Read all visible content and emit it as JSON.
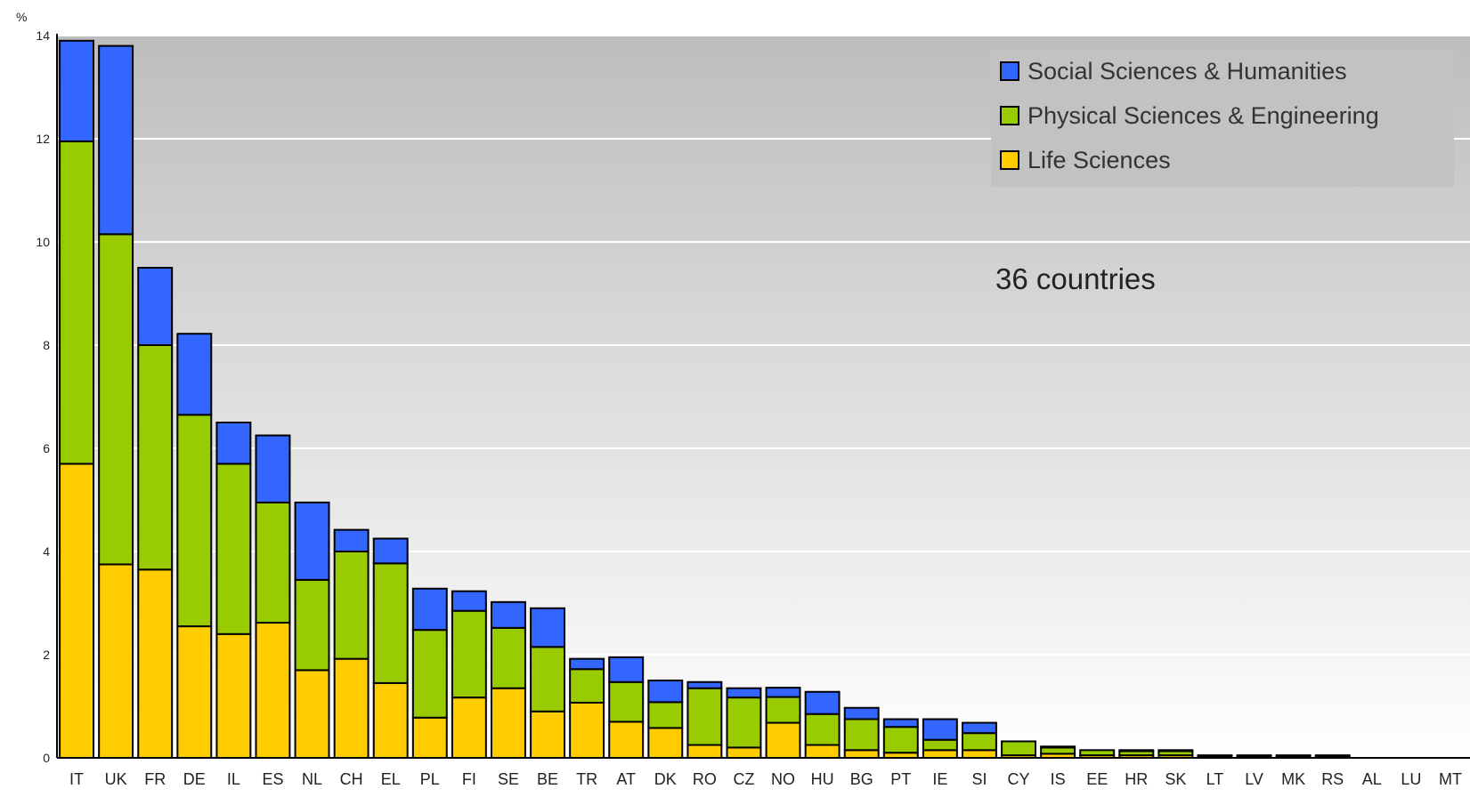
{
  "chart_data": {
    "type": "bar",
    "stacked": true,
    "ylabel": "%",
    "ylim": [
      0,
      14
    ],
    "yticks": [
      "0",
      "2",
      "4",
      "6",
      "8",
      "10",
      "12",
      "14"
    ],
    "annotation": "36 countries",
    "legend_position": "top-right",
    "categories": [
      "IT",
      "UK",
      "FR",
      "DE",
      "IL",
      "ES",
      "NL",
      "CH",
      "EL",
      "PL",
      "FI",
      "SE",
      "BE",
      "TR",
      "AT",
      "DK",
      "RO",
      "CZ",
      "NO",
      "HU",
      "BG",
      "PT",
      "IE",
      "SI",
      "CY",
      "IS",
      "EE",
      "HR",
      "SK",
      "LT",
      "LV",
      "MK",
      "RS",
      "AL",
      "LU",
      "MT"
    ],
    "series": [
      {
        "name": "Life Sciences",
        "color": "#ffcc00",
        "values": [
          5.7,
          3.75,
          3.65,
          2.55,
          2.4,
          2.62,
          1.7,
          1.92,
          1.45,
          0.78,
          1.17,
          1.35,
          0.9,
          1.07,
          0.7,
          0.58,
          0.25,
          0.2,
          0.68,
          0.25,
          0.15,
          0.1,
          0.15,
          0.15,
          0.05,
          0.08,
          0.05,
          0.05,
          0.05,
          0.02,
          0.02,
          0.02,
          0.02,
          0.0,
          0.0,
          0.0
        ]
      },
      {
        "name": "Physical Sciences & Engineering",
        "color": "#99cc00",
        "values": [
          6.25,
          6.4,
          4.35,
          4.1,
          3.3,
          2.33,
          1.75,
          2.08,
          2.32,
          1.7,
          1.68,
          1.17,
          1.25,
          0.65,
          0.77,
          0.5,
          1.1,
          0.97,
          0.5,
          0.6,
          0.6,
          0.5,
          0.2,
          0.33,
          0.27,
          0.12,
          0.1,
          0.08,
          0.08,
          0.03,
          0.03,
          0.03,
          0.03,
          0.0,
          0.0,
          0.0
        ]
      },
      {
        "name": "Social Sciences & Humanities",
        "color": "#3366ff",
        "values": [
          1.95,
          3.65,
          1.5,
          1.57,
          0.8,
          1.3,
          1.5,
          0.42,
          0.48,
          0.8,
          0.38,
          0.5,
          0.75,
          0.2,
          0.48,
          0.42,
          0.12,
          0.18,
          0.18,
          0.43,
          0.22,
          0.15,
          0.4,
          0.2,
          0.0,
          0.02,
          0.0,
          0.02,
          0.02,
          0.0,
          0.0,
          0.0,
          0.0,
          0.0,
          0.0,
          0.0
        ]
      }
    ]
  }
}
